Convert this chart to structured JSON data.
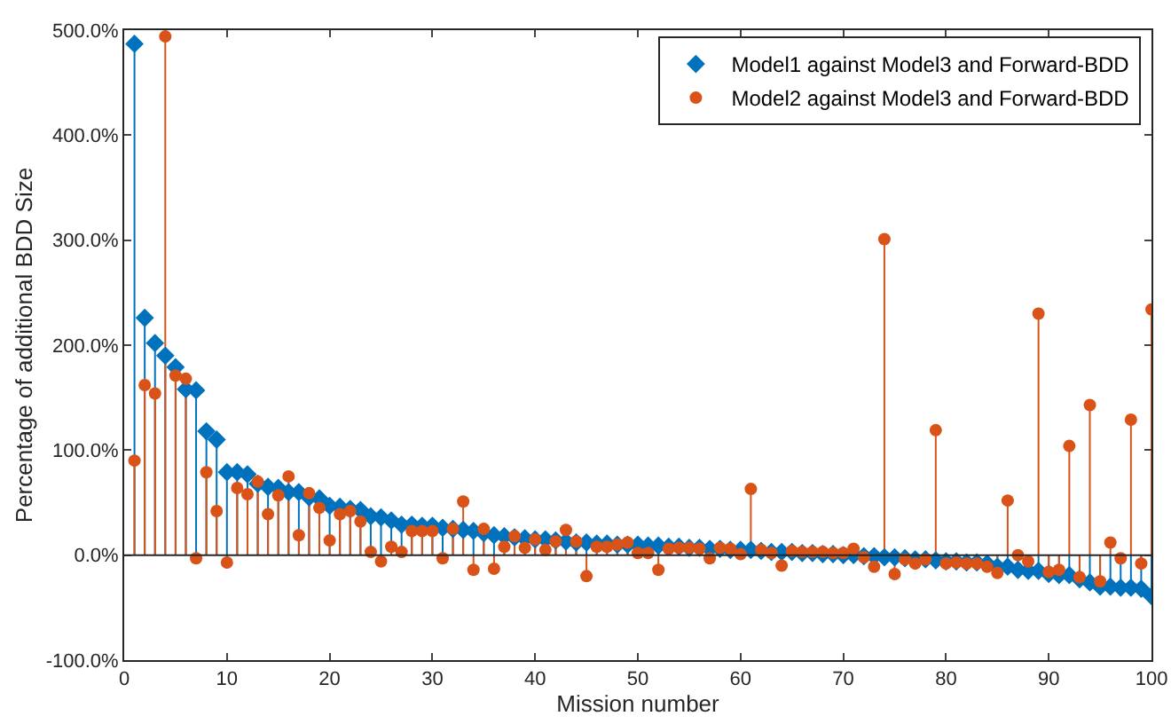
{
  "chart_data": {
    "type": "lollipop",
    "xlabel": "Mission number",
    "ylabel": "Percentage of additional BDD Size",
    "x": [
      1,
      2,
      3,
      4,
      5,
      6,
      7,
      8,
      9,
      10,
      11,
      12,
      13,
      14,
      15,
      16,
      17,
      18,
      19,
      20,
      21,
      22,
      23,
      24,
      25,
      26,
      27,
      28,
      29,
      30,
      31,
      32,
      33,
      34,
      35,
      36,
      37,
      38,
      39,
      40,
      41,
      42,
      43,
      44,
      45,
      46,
      47,
      48,
      49,
      50,
      51,
      52,
      53,
      54,
      55,
      56,
      57,
      58,
      59,
      60,
      61,
      62,
      63,
      64,
      65,
      66,
      67,
      68,
      69,
      70,
      71,
      72,
      73,
      74,
      75,
      76,
      77,
      78,
      79,
      80,
      81,
      82,
      83,
      84,
      85,
      86,
      87,
      88,
      89,
      90,
      91,
      92,
      93,
      94,
      95,
      96,
      97,
      98,
      99,
      100
    ],
    "series": [
      {
        "name": "Model1 against Model3 and Forward-BDD",
        "color": "#0072bd",
        "marker": "diamond",
        "values": [
          487,
          226,
          202,
          190,
          179,
          158,
          157,
          118,
          110,
          79,
          79,
          77,
          68,
          65,
          64,
          60,
          60,
          55,
          54,
          47,
          46,
          44,
          43,
          37,
          36,
          33,
          29,
          29,
          28,
          28,
          26,
          25,
          24,
          23,
          21,
          19,
          18,
          17,
          16,
          15,
          15,
          14,
          13,
          12,
          12,
          11,
          11,
          10,
          10,
          10,
          9,
          9,
          8,
          8,
          7,
          7,
          6,
          6,
          5,
          5,
          5,
          4,
          3,
          3,
          3,
          2,
          2,
          1,
          1,
          0,
          0,
          -1,
          -1,
          -2,
          -2,
          -3,
          -4,
          -4,
          -5,
          -6,
          -6,
          -7,
          -7,
          -8,
          -11,
          -11,
          -14,
          -15,
          -15,
          -18,
          -19,
          -19,
          -23,
          -26,
          -30,
          -30,
          -31,
          -31,
          -32,
          -39
        ]
      },
      {
        "name": "Model2 against Model3 and Forward-BDD",
        "color": "#d95319",
        "marker": "circle",
        "values": [
          90,
          162,
          154,
          494,
          171,
          168,
          -3,
          79,
          42,
          -7,
          64,
          58,
          70,
          39,
          57,
          75,
          19,
          59,
          45,
          14,
          39,
          42,
          32,
          3,
          -6,
          8,
          3,
          23,
          23,
          23,
          -3,
          25,
          51,
          -14,
          25,
          -13,
          8,
          18,
          7,
          15,
          5,
          13,
          24,
          13,
          -20,
          8,
          8,
          10,
          12,
          2,
          2,
          -14,
          6,
          7,
          7,
          6,
          -3,
          7,
          6,
          1,
          63,
          5,
          2,
          -10,
          4,
          3,
          3,
          3,
          2,
          2,
          6,
          -2,
          -11,
          301,
          -18,
          -4,
          -8,
          -4,
          119,
          -8,
          -7,
          -8,
          -8,
          -11,
          -17,
          52,
          0,
          -6,
          230,
          -16,
          -14,
          104,
          -21,
          143,
          -25,
          12,
          -3,
          129,
          -8,
          234
        ]
      }
    ],
    "xlim": [
      0,
      100
    ],
    "xticks": [
      0,
      10,
      20,
      30,
      40,
      50,
      60,
      70,
      80,
      90,
      100
    ],
    "ylim": [
      -100,
      500
    ],
    "yticks": [
      {
        "value": -100,
        "label": "-100.0%"
      },
      {
        "value": 0,
        "label": "0.0%"
      },
      {
        "value": 100,
        "label": "100.0%"
      },
      {
        "value": 200,
        "label": "200.0%"
      },
      {
        "value": 300,
        "label": "300.0%"
      },
      {
        "value": 400,
        "label": "400.0%"
      },
      {
        "value": 500,
        "label": "500.0%"
      }
    ],
    "ref_lines": [
      {
        "axis": "y",
        "value": 0,
        "color": "#262626"
      }
    ],
    "grid": false,
    "legend": "top right"
  }
}
